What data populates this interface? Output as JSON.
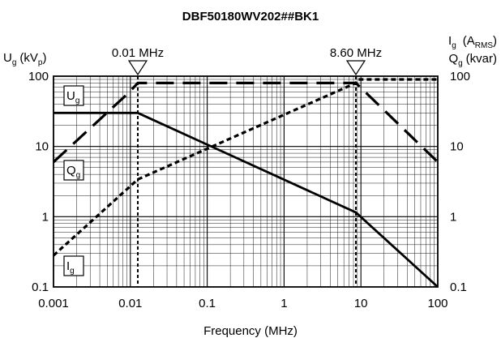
{
  "chart_data": {
    "type": "line",
    "title": "DBF50180WV202##BK1",
    "xlabel": "Frequency (MHz)",
    "x_scale": "log",
    "y_scale": "log",
    "xlim": [
      0.001,
      100
    ],
    "ylim": [
      0.1,
      100
    ],
    "x_ticks": [
      "0.001",
      "0.01",
      "0.1",
      "1",
      "10",
      "100"
    ],
    "y_ticks_left": [
      "0.1",
      "1",
      "10",
      "100"
    ],
    "y_ticks_right": [
      "0.1",
      "1",
      "10",
      "100"
    ],
    "left_axis": {
      "symbol": "U",
      "sub": "g",
      "unit_open": "(kV",
      "unit_sub": "p",
      "unit_close": ")"
    },
    "right_axis": {
      "line1": {
        "symbol": "I",
        "sub": "g",
        "unit_open": "(A",
        "unit_sub": "RMS",
        "unit_close": ")"
      },
      "line2": {
        "symbol": "Q",
        "sub": "g",
        "unit": "(kvar)"
      }
    },
    "markers": [
      {
        "label": "0.01 MHz",
        "x": 0.0125
      },
      {
        "label": "8.60 MHz",
        "x": 8.6
      }
    ],
    "series": [
      {
        "name": "Ug",
        "style": "solid",
        "x": [
          0.001,
          0.0125,
          8.6,
          100
        ],
        "y": [
          30,
          30,
          1.15,
          0.1
        ]
      },
      {
        "name": "Qg",
        "style": "long-dash",
        "x": [
          0.001,
          0.0095,
          0.0125,
          6.8,
          8.6,
          100
        ],
        "y": [
          6,
          58,
          80,
          80,
          80,
          6
        ]
      },
      {
        "name": "Ig",
        "style": "short-dash",
        "x": [
          0.001,
          0.0125,
          8.6,
          9.2,
          100
        ],
        "y": [
          0.28,
          3.4,
          80,
          90,
          90
        ]
      }
    ],
    "legend_labels": [
      {
        "symbol": "U",
        "sub": "g"
      },
      {
        "symbol": "Q",
        "sub": "g"
      },
      {
        "symbol": "I",
        "sub": "g"
      }
    ],
    "grid": true
  }
}
